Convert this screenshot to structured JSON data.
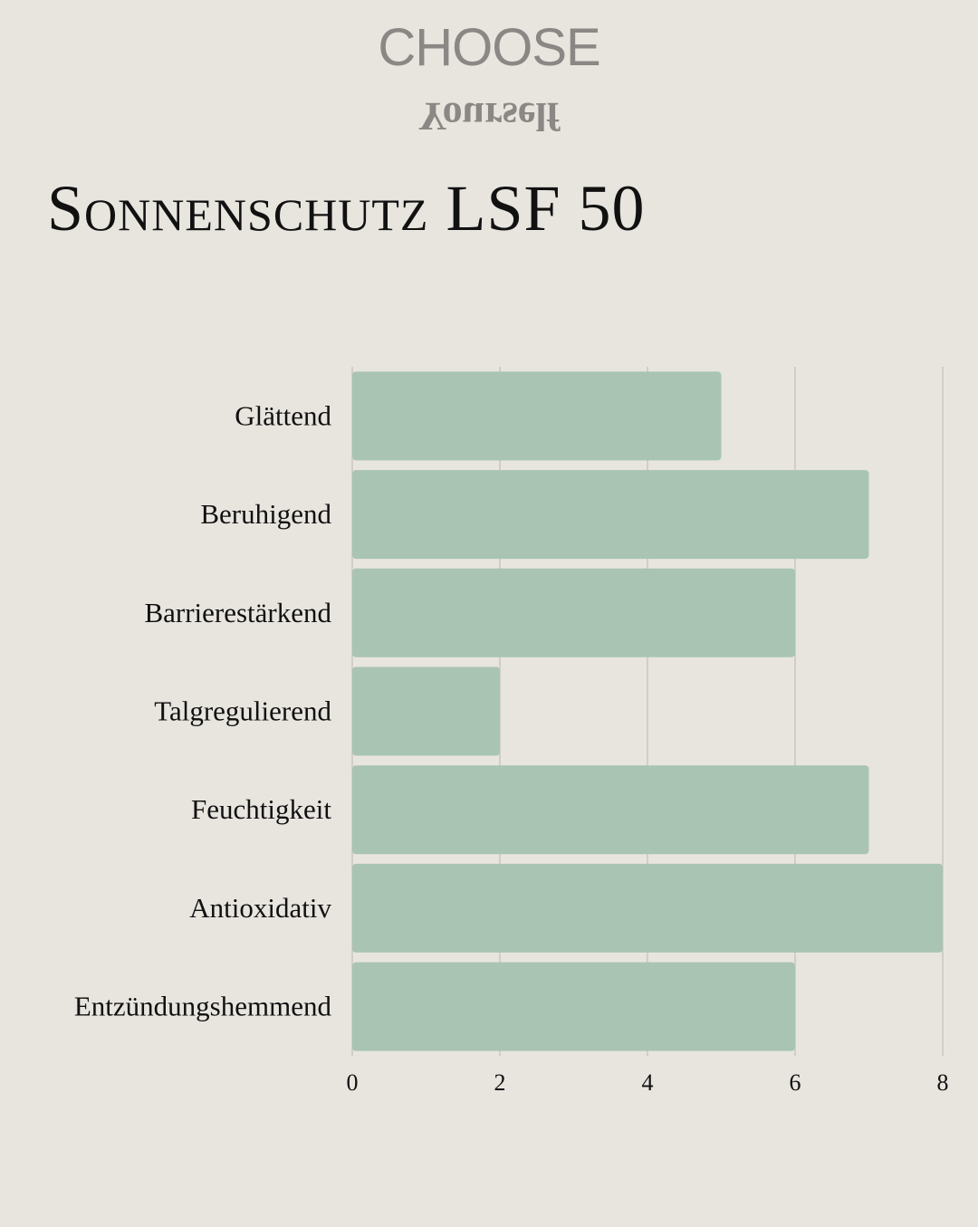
{
  "logo": {
    "line1": "CHOOSE",
    "line2": "Yourself"
  },
  "chart_data": {
    "type": "hbar",
    "title": "Sonnenschutz LSF 50",
    "categories": [
      "Glättend",
      "Beruhigend",
      "Barrierestärkend",
      "Talgregulierend",
      "Feuchtigkeit",
      "Antioxidativ",
      "Entzündungshemmend"
    ],
    "values": [
      5,
      7,
      6,
      2,
      7,
      8,
      6
    ],
    "color": "#a9c4b3",
    "xlim": [
      0,
      8
    ],
    "xticks": [
      0,
      2,
      4,
      6,
      8
    ],
    "grid": true
  }
}
